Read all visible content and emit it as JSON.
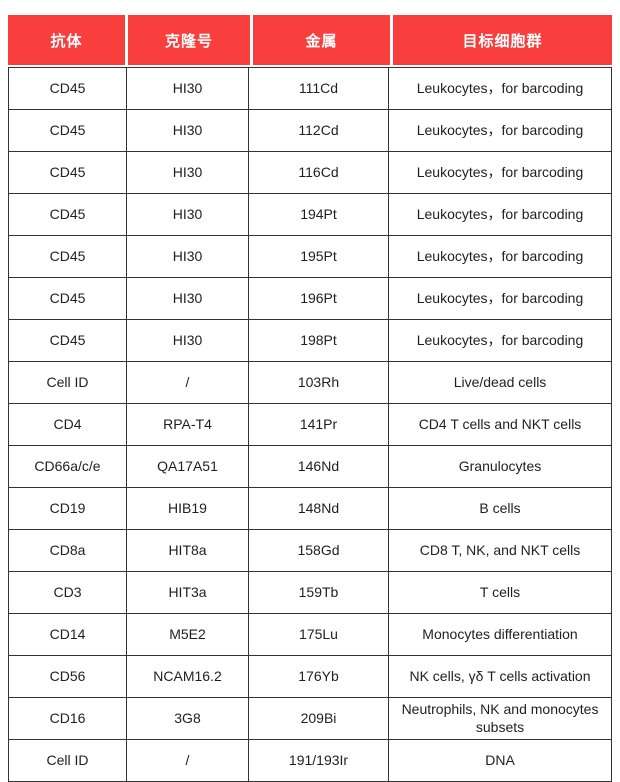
{
  "colors": {
    "header_bg": "#f93e3e",
    "header_text": "#ffffff",
    "border": "#333333",
    "body_text": "#1f1f1f"
  },
  "table": {
    "headers": [
      "抗体",
      "克隆号",
      "金属",
      "目标细胞群"
    ],
    "rows": [
      {
        "antibody": "CD45",
        "clone": "HI30",
        "metal": "111Cd",
        "target": "Leukocytes，for barcoding"
      },
      {
        "antibody": "CD45",
        "clone": "HI30",
        "metal": "112Cd",
        "target": "Leukocytes，for barcoding"
      },
      {
        "antibody": "CD45",
        "clone": "HI30",
        "metal": "116Cd",
        "target": "Leukocytes，for barcoding"
      },
      {
        "antibody": "CD45",
        "clone": "HI30",
        "metal": "194Pt",
        "target": "Leukocytes，for barcoding"
      },
      {
        "antibody": "CD45",
        "clone": "HI30",
        "metal": "195Pt",
        "target": "Leukocytes，for barcoding"
      },
      {
        "antibody": "CD45",
        "clone": "HI30",
        "metal": "196Pt",
        "target": "Leukocytes，for barcoding"
      },
      {
        "antibody": "CD45",
        "clone": "HI30",
        "metal": "198Pt",
        "target": "Leukocytes，for barcoding"
      },
      {
        "antibody": "Cell ID",
        "clone": "/",
        "metal": "103Rh",
        "target": "Live/dead cells"
      },
      {
        "antibody": "CD4",
        "clone": "RPA-T4",
        "metal": "141Pr",
        "target": "CD4 T cells and NKT cells"
      },
      {
        "antibody": "CD66a/c/e",
        "clone": "QA17A51",
        "metal": "146Nd",
        "target": "Granulocytes"
      },
      {
        "antibody": "CD19",
        "clone": "HIB19",
        "metal": "148Nd",
        "target": "B cells"
      },
      {
        "antibody": "CD8a",
        "clone": "HIT8a",
        "metal": "158Gd",
        "target": "CD8 T, NK, and NKT cells"
      },
      {
        "antibody": "CD3",
        "clone": "HIT3a",
        "metal": "159Tb",
        "target": "T cells"
      },
      {
        "antibody": "CD14",
        "clone": "M5E2",
        "metal": "175Lu",
        "target": "Monocytes differentiation"
      },
      {
        "antibody": "CD56",
        "clone": "NCAM16.2",
        "metal": "176Yb",
        "target": "NK cells, γδ T cells activation"
      },
      {
        "antibody": "CD16",
        "clone": "3G8",
        "metal": "209Bi",
        "target": "Neutrophils, NK and monocytes subsets"
      },
      {
        "antibody": "Cell ID",
        "clone": "/",
        "metal": "191/193Ir",
        "target": "DNA"
      }
    ]
  }
}
